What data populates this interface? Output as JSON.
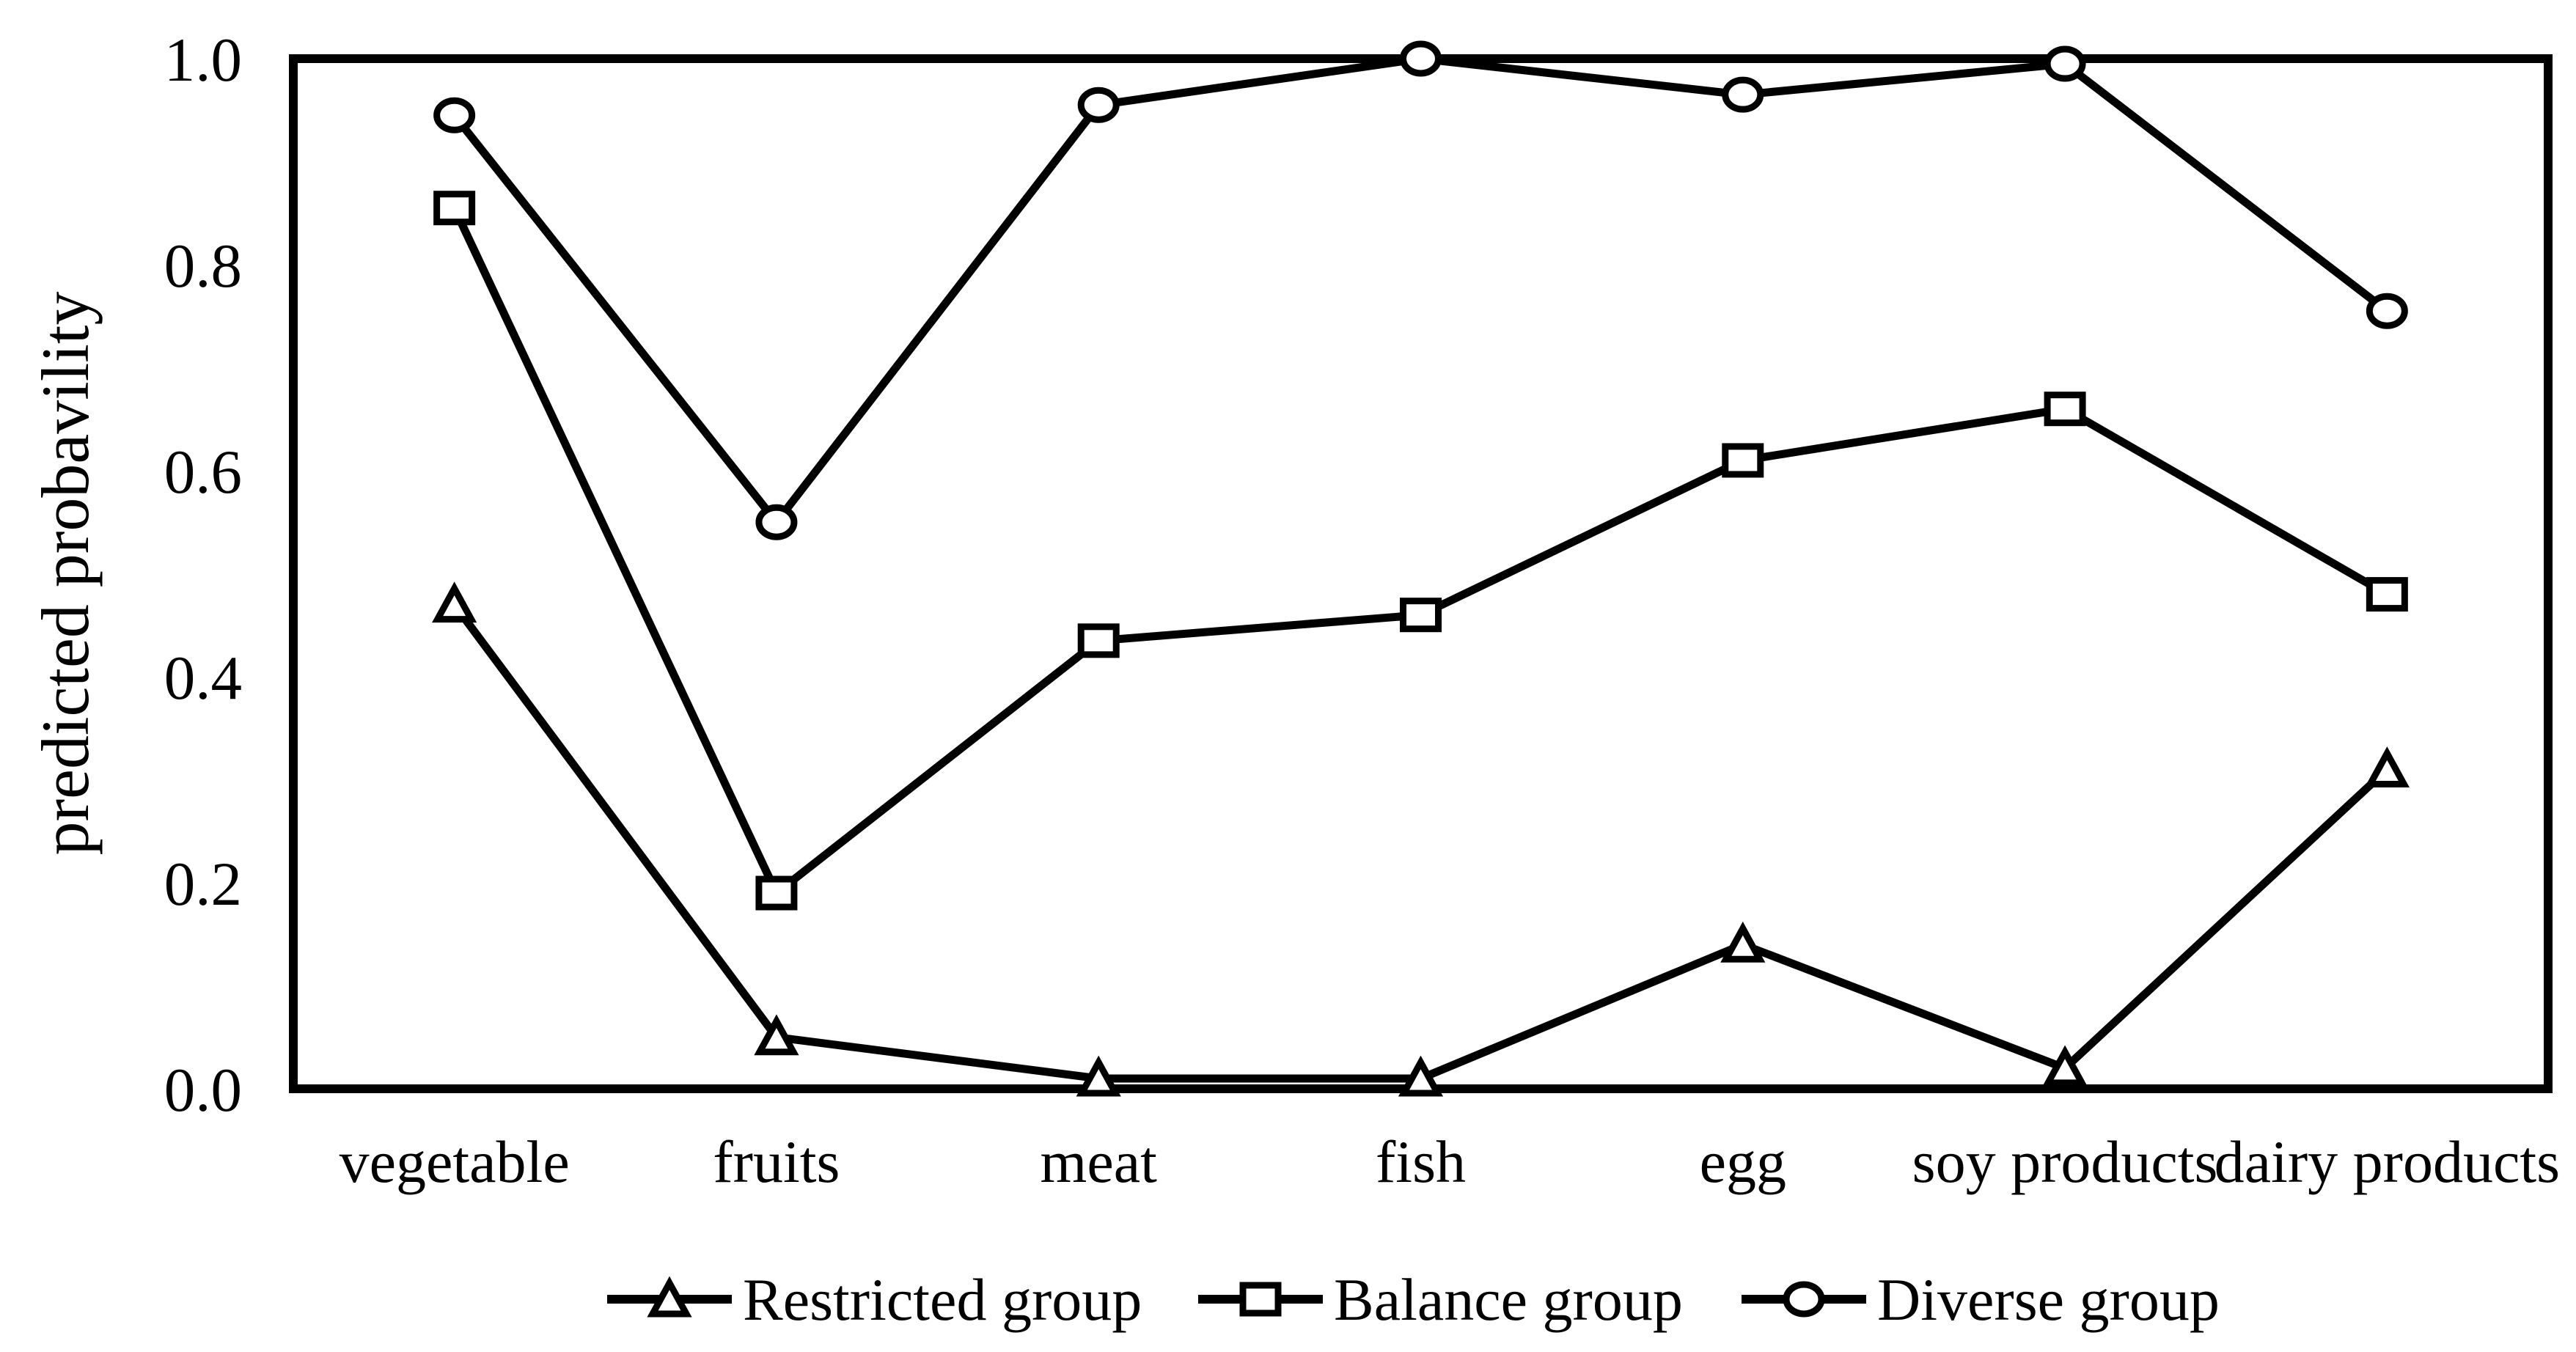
{
  "figure": {
    "background_color": "#ffffff",
    "line_color": "#000000"
  },
  "chart_data": {
    "type": "line",
    "title": "",
    "xlabel": "",
    "ylabel": "predicted probavility",
    "ylim": [
      0.0,
      1.0
    ],
    "y_tick_labels": [
      "0.0",
      "0.2",
      "0.4",
      "0.6",
      "0.8",
      "1.0"
    ],
    "grid": "off",
    "legend_position": "bottom",
    "plot_border": "box",
    "categories": [
      "vegetable",
      "fruits",
      "meat",
      "fish",
      "egg",
      "soy products",
      "dairy products"
    ],
    "series": [
      {
        "name": "Restricted group",
        "marker": "triangle",
        "values": [
          0.47,
          0.05,
          0.01,
          0.01,
          0.14,
          0.02,
          0.31
        ]
      },
      {
        "name": "Balance group",
        "marker": "square",
        "values": [
          0.855,
          0.19,
          0.435,
          0.46,
          0.61,
          0.66,
          0.48
        ]
      },
      {
        "name": "Diverse group",
        "marker": "circle",
        "values": [
          0.945,
          0.55,
          0.955,
          1.0,
          0.965,
          0.995,
          0.755
        ]
      }
    ]
  }
}
